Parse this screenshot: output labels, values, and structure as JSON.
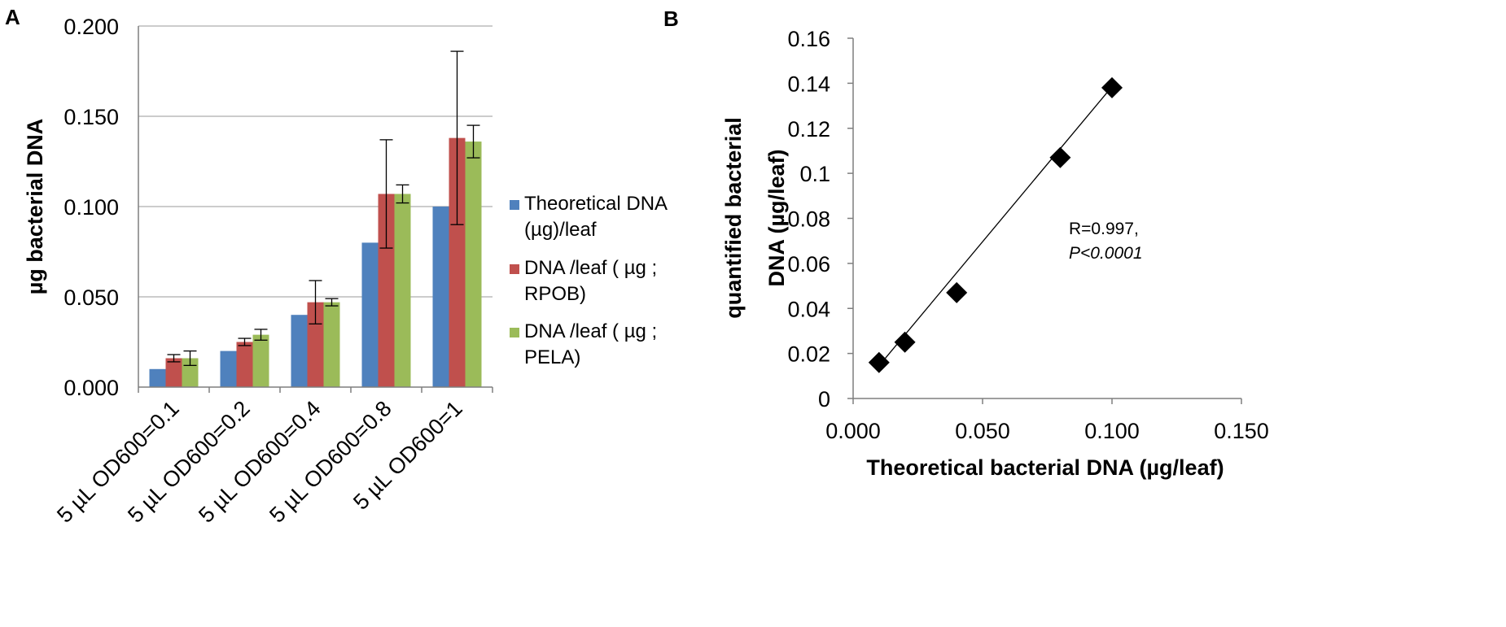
{
  "chart_data": [
    {
      "panel": "A",
      "type": "bar",
      "title": "",
      "xlabel": "",
      "ylabel": "µg bacterial DNA",
      "ylim": [
        0,
        0.2
      ],
      "yticks": [
        "0.000",
        "0.050",
        "0.100",
        "0.150",
        "0.200"
      ],
      "grid": true,
      "legend_position": "right",
      "categories": [
        "5 µL OD600=0.1",
        "5 µL OD600=0.2",
        "5 µL OD600=0.4",
        "5 µL OD600=0.8",
        "5 µL OD600=1"
      ],
      "series": [
        {
          "name": "Theoretical DNA (µg)/leaf",
          "legend_lines": [
            "Theoretical DNA",
            "(µg)/leaf"
          ],
          "color": "#4f81bd",
          "values": [
            0.01,
            0.02,
            0.04,
            0.08,
            0.1
          ],
          "errors": [
            0,
            0,
            0,
            0,
            0
          ]
        },
        {
          "name": "DNA /leaf ( µg ; RPOB)",
          "legend_lines": [
            "DNA /leaf ( µg ;",
            "RPOB)"
          ],
          "color": "#c0504d",
          "values": [
            0.016,
            0.025,
            0.047,
            0.107,
            0.138
          ],
          "errors": [
            0.002,
            0.002,
            0.012,
            0.03,
            0.048
          ]
        },
        {
          "name": "DNA /leaf ( µg ; PELA)",
          "legend_lines": [
            "DNA /leaf ( µg ;",
            "PELA)"
          ],
          "color": "#9bbb59",
          "values": [
            0.016,
            0.029,
            0.047,
            0.107,
            0.136
          ],
          "errors": [
            0.004,
            0.003,
            0.002,
            0.005,
            0.009
          ]
        }
      ]
    },
    {
      "panel": "B",
      "type": "scatter",
      "title": "",
      "xlabel": "Theoretical bacterial DNA (µg/leaf)",
      "ylabel_lines": [
        "quantified bacterial",
        "DNA (µg/leaf)"
      ],
      "xlim": [
        0,
        0.15
      ],
      "ylim": [
        0,
        0.16
      ],
      "xticks": [
        "0.000",
        "0.050",
        "0.100",
        "0.150"
      ],
      "yticks": [
        "0",
        "0.02",
        "0.04",
        "0.06",
        "0.08",
        "0.1",
        "0.12",
        "0.14",
        "0.16"
      ],
      "grid": false,
      "marker": "diamond",
      "points": [
        {
          "x": 0.01,
          "y": 0.016
        },
        {
          "x": 0.02,
          "y": 0.025
        },
        {
          "x": 0.04,
          "y": 0.047
        },
        {
          "x": 0.08,
          "y": 0.107
        },
        {
          "x": 0.1,
          "y": 0.138
        }
      ],
      "trendline": {
        "x": [
          0.01,
          0.1
        ],
        "y": [
          0.0145,
          0.1385
        ]
      },
      "annotation": {
        "line1": "R=0.997,",
        "line2": "P<0.0001"
      }
    }
  ]
}
